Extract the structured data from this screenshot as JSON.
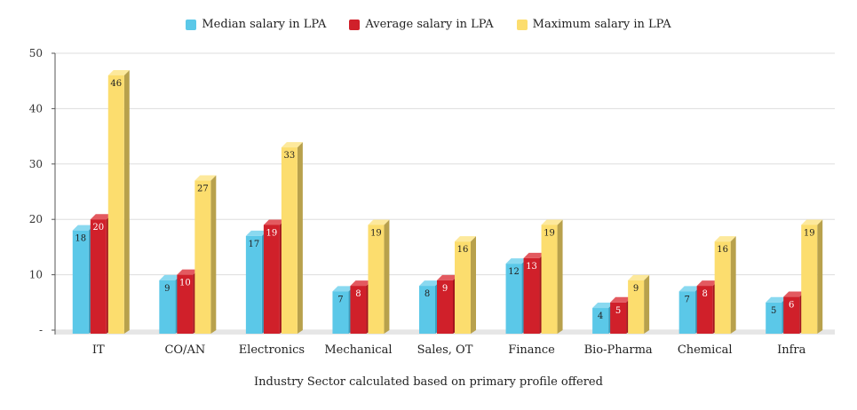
{
  "chart_data": {
    "type": "bar",
    "title": "",
    "xlabel": "Industry Sector calculated based on primary profile offered",
    "ylabel": "",
    "ylim": [
      0,
      50
    ],
    "yticks": [
      "-",
      "10",
      "20",
      "30",
      "40",
      "50"
    ],
    "grid": true,
    "legend_position": "top-center",
    "categories": [
      "IT",
      "CO/AN",
      "Electronics",
      "Mechanical",
      "Sales, OT",
      "Finance",
      "Bio-Pharma",
      "Chemical",
      "Infra"
    ],
    "series": [
      {
        "name": "Median salary in LPA",
        "color": "#5bc8e8",
        "side": "#3a9fc0",
        "top": "#8ad9f0",
        "values": [
          18,
          9,
          17,
          7,
          8,
          12,
          4,
          7,
          5
        ]
      },
      {
        "name": "Average salary in LPA",
        "color": "#d0202a",
        "side": "#a3151d",
        "top": "#e35a60",
        "values": [
          20,
          10,
          19,
          8,
          9,
          13,
          5,
          8,
          6
        ]
      },
      {
        "name": "Maximum salary in LPA",
        "color": "#fcdd6e",
        "side": "#b8a14c",
        "top": "#fde99c",
        "values": [
          46,
          27,
          33,
          19,
          16,
          19,
          9,
          16,
          19
        ]
      }
    ]
  }
}
